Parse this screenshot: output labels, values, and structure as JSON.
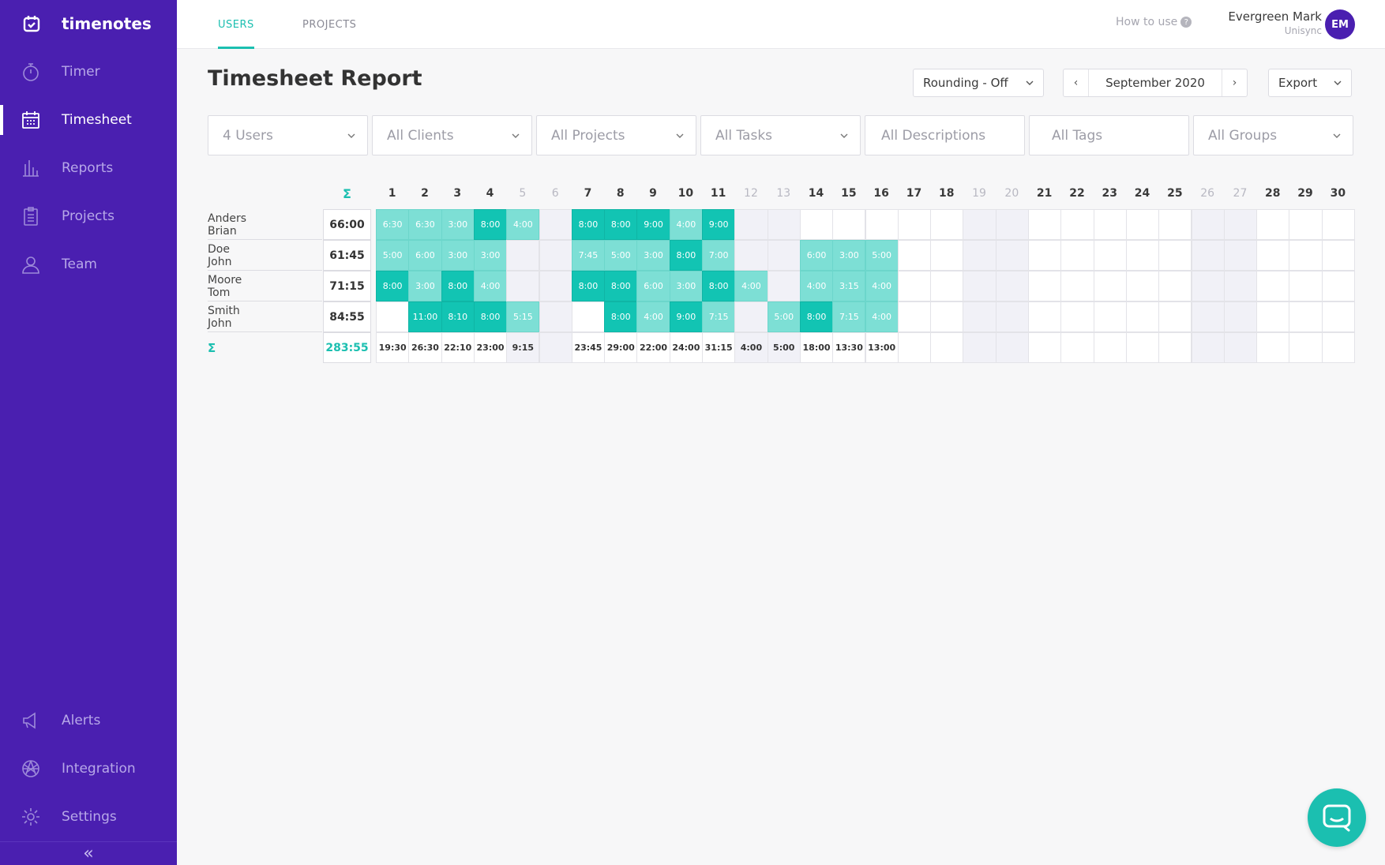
{
  "app": {
    "name": "timenotes"
  },
  "sidebar": {
    "items": [
      {
        "label": "Timer",
        "icon": "stopwatch-icon",
        "active": false
      },
      {
        "label": "Timesheet",
        "icon": "calendar-grid-icon",
        "active": true
      },
      {
        "label": "Reports",
        "icon": "bar-chart-icon",
        "active": false
      },
      {
        "label": "Projects",
        "icon": "clipboard-icon",
        "active": false
      },
      {
        "label": "Team",
        "icon": "user-icon",
        "active": false
      }
    ],
    "bottom_items": [
      {
        "label": "Alerts",
        "icon": "megaphone-icon"
      },
      {
        "label": "Integration",
        "icon": "integration-icon"
      },
      {
        "label": "Settings",
        "icon": "gear-icon"
      }
    ],
    "collapse_label": "«"
  },
  "topbar": {
    "tabs": [
      {
        "label": "USERS",
        "active": true
      },
      {
        "label": "PROJECTS",
        "active": false
      }
    ],
    "how_to_use": "How to use",
    "user": {
      "name": "Evergreen Mark",
      "org": "Unisync",
      "initials": "EM"
    }
  },
  "header": {
    "title": "Timesheet Report",
    "rounding": "Rounding - Off",
    "month": "September 2020",
    "export": "Export"
  },
  "filters": {
    "users": "4 Users",
    "clients": "All Clients",
    "projects": "All Projects",
    "tasks": "All Tasks",
    "descriptions": "All Descriptions",
    "tags": "All Tags",
    "groups": "All Groups"
  },
  "timesheet": {
    "sigma": "Σ",
    "days": [
      "1",
      "2",
      "3",
      "4",
      "5",
      "6",
      "7",
      "8",
      "9",
      "10",
      "11",
      "12",
      "13",
      "14",
      "15",
      "16",
      "17",
      "18",
      "19",
      "20",
      "21",
      "22",
      "23",
      "24",
      "25",
      "26",
      "27",
      "28",
      "29",
      "30"
    ],
    "weekend_days": [
      5,
      6,
      12,
      13,
      19,
      20,
      26,
      27
    ],
    "rows": [
      {
        "name": "Anders Brian",
        "total": "66:00",
        "cells": [
          [
            "6:30",
            "lo"
          ],
          [
            "6:30",
            "lo"
          ],
          [
            "3:00",
            "lo"
          ],
          [
            "8:00",
            "hi"
          ],
          [
            "4:00",
            "lo"
          ],
          [
            "",
            ""
          ],
          [
            "8:00",
            "hi"
          ],
          [
            "8:00",
            "hi"
          ],
          [
            "9:00",
            "hi"
          ],
          [
            "4:00",
            "lo"
          ],
          [
            "9:00",
            "hi"
          ],
          [
            "",
            ""
          ],
          [
            "",
            ""
          ],
          [
            "",
            ""
          ],
          [
            "",
            ""
          ],
          [
            "",
            ""
          ],
          [
            "",
            ""
          ],
          [
            "",
            ""
          ],
          [
            "",
            ""
          ],
          [
            "",
            ""
          ],
          [
            "",
            ""
          ],
          [
            "",
            ""
          ],
          [
            "",
            ""
          ],
          [
            "",
            ""
          ],
          [
            "",
            ""
          ],
          [
            "",
            ""
          ],
          [
            "",
            ""
          ],
          [
            "",
            ""
          ],
          [
            "",
            ""
          ],
          [
            "",
            ""
          ]
        ]
      },
      {
        "name": "Doe John",
        "total": "61:45",
        "cells": [
          [
            "5:00",
            "lo"
          ],
          [
            "6:00",
            "lo"
          ],
          [
            "3:00",
            "lo"
          ],
          [
            "3:00",
            "lo"
          ],
          [
            "",
            ""
          ],
          [
            "",
            ""
          ],
          [
            "7:45",
            "lo"
          ],
          [
            "5:00",
            "lo"
          ],
          [
            "3:00",
            "lo"
          ],
          [
            "8:00",
            "hi"
          ],
          [
            "7:00",
            "lo"
          ],
          [
            "",
            ""
          ],
          [
            "",
            ""
          ],
          [
            "6:00",
            "lo"
          ],
          [
            "3:00",
            "lo"
          ],
          [
            "5:00",
            "lo"
          ],
          [
            "",
            ""
          ],
          [
            "",
            ""
          ],
          [
            "",
            ""
          ],
          [
            "",
            ""
          ],
          [
            "",
            ""
          ],
          [
            "",
            ""
          ],
          [
            "",
            ""
          ],
          [
            "",
            ""
          ],
          [
            "",
            ""
          ],
          [
            "",
            ""
          ],
          [
            "",
            ""
          ],
          [
            "",
            ""
          ],
          [
            "",
            ""
          ],
          [
            "",
            ""
          ]
        ]
      },
      {
        "name": "Moore Tom",
        "total": "71:15",
        "cells": [
          [
            "8:00",
            "hi"
          ],
          [
            "3:00",
            "lo"
          ],
          [
            "8:00",
            "hi"
          ],
          [
            "4:00",
            "lo"
          ],
          [
            "",
            ""
          ],
          [
            "",
            ""
          ],
          [
            "8:00",
            "hi"
          ],
          [
            "8:00",
            "hi"
          ],
          [
            "6:00",
            "lo"
          ],
          [
            "3:00",
            "lo"
          ],
          [
            "8:00",
            "hi"
          ],
          [
            "4:00",
            "lo"
          ],
          [
            "",
            ""
          ],
          [
            "4:00",
            "lo"
          ],
          [
            "3:15",
            "lo"
          ],
          [
            "4:00",
            "lo"
          ],
          [
            "",
            ""
          ],
          [
            "",
            ""
          ],
          [
            "",
            ""
          ],
          [
            "",
            ""
          ],
          [
            "",
            ""
          ],
          [
            "",
            ""
          ],
          [
            "",
            ""
          ],
          [
            "",
            ""
          ],
          [
            "",
            ""
          ],
          [
            "",
            ""
          ],
          [
            "",
            ""
          ],
          [
            "",
            ""
          ],
          [
            "",
            ""
          ],
          [
            "",
            ""
          ]
        ]
      },
      {
        "name": "Smith John",
        "total": "84:55",
        "cells": [
          [
            "",
            ""
          ],
          [
            "11:00",
            "hi"
          ],
          [
            "8:10",
            "hi"
          ],
          [
            "8:00",
            "hi"
          ],
          [
            "5:15",
            "lo"
          ],
          [
            "",
            ""
          ],
          [
            "",
            ""
          ],
          [
            "8:00",
            "hi"
          ],
          [
            "4:00",
            "lo"
          ],
          [
            "9:00",
            "hi"
          ],
          [
            "7:15",
            "lo"
          ],
          [
            "",
            ""
          ],
          [
            "5:00",
            "lo"
          ],
          [
            "8:00",
            "hi"
          ],
          [
            "7:15",
            "lo"
          ],
          [
            "4:00",
            "lo"
          ],
          [
            "",
            ""
          ],
          [
            "",
            ""
          ],
          [
            "",
            ""
          ],
          [
            "",
            ""
          ],
          [
            "",
            ""
          ],
          [
            "",
            ""
          ],
          [
            "",
            ""
          ],
          [
            "",
            ""
          ],
          [
            "",
            ""
          ],
          [
            "",
            ""
          ],
          [
            "",
            ""
          ],
          [
            "",
            ""
          ],
          [
            "",
            ""
          ],
          [
            "",
            ""
          ]
        ]
      }
    ],
    "grand_total": "283:55",
    "day_totals": [
      "19:30",
      "26:30",
      "22:10",
      "23:00",
      "9:15",
      "",
      "23:45",
      "29:00",
      "22:00",
      "24:00",
      "31:15",
      "4:00",
      "5:00",
      "18:00",
      "13:30",
      "13:00",
      "",
      "",
      "",
      "",
      "",
      "",
      "",
      "",
      "",
      "",
      "",
      "",
      "",
      ""
    ]
  },
  "colors": {
    "sidebar": "#4a1fb0",
    "accent": "#1bbfb0",
    "cell_high": "#12c4b3",
    "cell_low": "#7ddfd5"
  }
}
